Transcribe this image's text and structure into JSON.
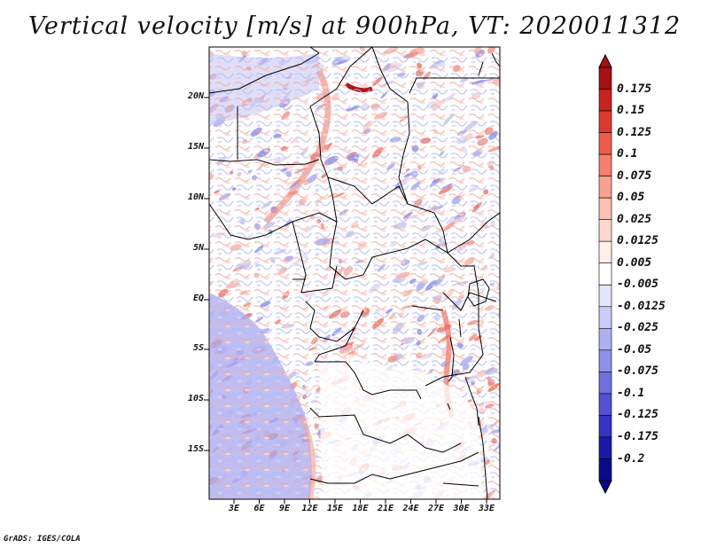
{
  "title": "Vertical velocity [m/s] at 900hPa, VT: 2020011312",
  "credit": "GrADS: IGES/COLA",
  "map": {
    "lat_labels": [
      "20N",
      "15N",
      "10N",
      "5N",
      "EQ",
      "5S",
      "10S",
      "15S"
    ],
    "lon_labels": [
      "3E",
      "6E",
      "9E",
      "12E",
      "15E",
      "18E",
      "21E",
      "24E",
      "27E",
      "30E",
      "33E"
    ]
  },
  "colorbar": {
    "labels": [
      "0.175",
      "0.15",
      "0.125",
      "0.1",
      "0.075",
      "0.05",
      "0.025",
      "0.0125",
      "0.005",
      "-0.005",
      "-0.0125",
      "-0.025",
      "-0.05",
      "-0.075",
      "-0.1",
      "-0.125",
      "-0.175",
      "-0.2"
    ],
    "colors": [
      "#a50f15",
      "#c8231f",
      "#de3a30",
      "#ee5b4c",
      "#f57f6e",
      "#f9a190",
      "#fcc0b2",
      "#fed8ce",
      "#fff0eb",
      "#ffffff",
      "#e4e4fb",
      "#ccccf7",
      "#b0b0f1",
      "#9090e9",
      "#7070df",
      "#5252d2",
      "#3434c0",
      "#1a1aa8",
      "#0a0a8c"
    ]
  }
}
